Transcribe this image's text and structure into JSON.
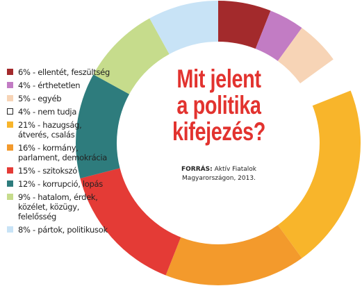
{
  "chart_data": {
    "type": "donut",
    "title": [
      "Mit jelent",
      "a politika",
      "kifejezés?"
    ],
    "source_label": "FORRÁS:",
    "source_text": "Aktív Fiatalok Magyarországon, 2013.",
    "categories": [
      "6% - ellentét, feszültség",
      "4% - érthetetlen",
      "5% - egyéb",
      "4% - nem tudja",
      "21% - hazugság, átverés, csalás",
      "16% - kormány, parlament, demokrácia",
      "15% - szitokszó",
      "12% - korrupció, lopás",
      "9% - hatalom, érdek, közélet, közügy, felelősség",
      "8% - pártok, politikusok"
    ],
    "values": [
      6,
      4,
      5,
      4,
      21,
      16,
      15,
      12,
      9,
      8
    ],
    "colors": [
      "#a32a2c",
      "#c27cc4",
      "#f7d4b6",
      "#ffffff",
      "#f8b52b",
      "#f39a2c",
      "#e43b36",
      "#2e7c7d",
      "#c6dc8c",
      "#c8e3f6"
    ]
  }
}
